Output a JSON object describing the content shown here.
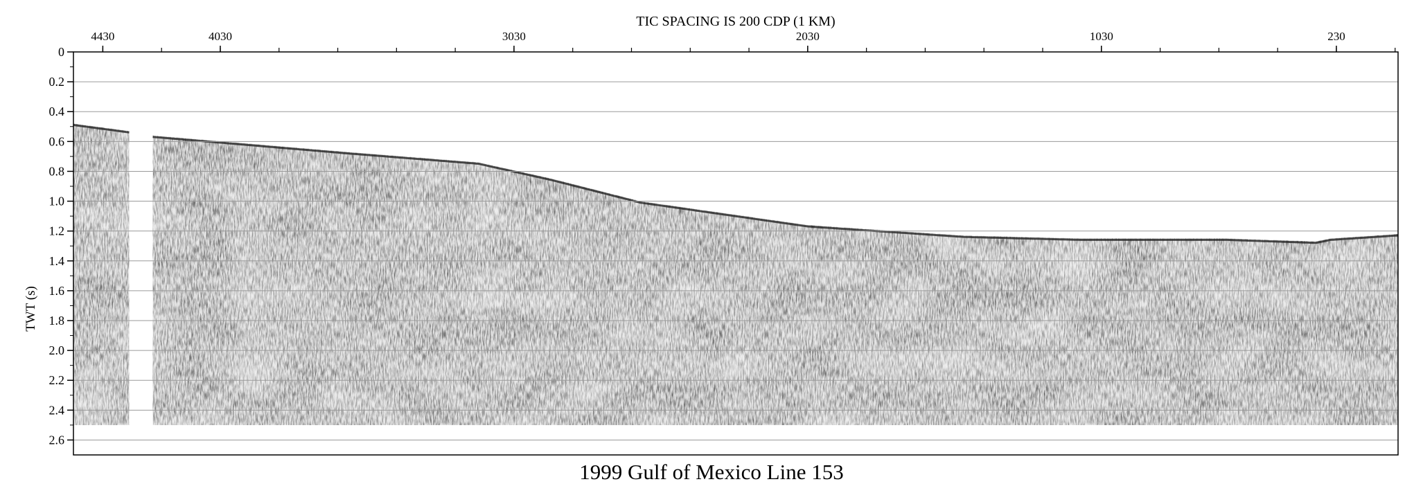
{
  "caption": "1999 Gulf of Mexico Line 153",
  "chart_data": {
    "type": "seismic-section",
    "title": "TIC SPACING IS 200 CDP (1 KM)",
    "xlabel": "",
    "ylabel": "TWT (s)",
    "x_axis_position": "top",
    "x_reversed": true,
    "x_ticks": [
      4430,
      4030,
      3030,
      2030,
      1030,
      230
    ],
    "x_minor_tick_spacing": 200,
    "xlim": [
      4530,
      20
    ],
    "y_reversed": true,
    "y_ticks": [
      0,
      0.2,
      0.4,
      0.6,
      0.8,
      1.0,
      1.2,
      1.4,
      1.6,
      1.8,
      2.0,
      2.2,
      2.4,
      2.6
    ],
    "y_tick_labels": [
      "0",
      "0.2",
      "0.4",
      "0.6",
      "0.8",
      "1.0",
      "1.2",
      "1.4",
      "1.6",
      "1.8",
      "2.0",
      "2.2",
      "2.4",
      "2.6"
    ],
    "ylim": [
      0,
      2.7
    ],
    "grid": true,
    "record_end_twt": 2.5,
    "data_gap_cdp": [
      4340,
      4260
    ],
    "seafloor": {
      "cdp": [
        4530,
        4340,
        4260,
        3600,
        3150,
        2900,
        2600,
        2030,
        1500,
        1100,
        600,
        300,
        250,
        20
      ],
      "twt": [
        0.48,
        0.53,
        0.56,
        0.67,
        0.74,
        0.85,
        1.0,
        1.16,
        1.23,
        1.25,
        1.25,
        1.27,
        1.25,
        1.22
      ]
    },
    "colors": {
      "background": "#ffffff",
      "ink": "#000000",
      "grid": "#9a9a9a"
    }
  }
}
